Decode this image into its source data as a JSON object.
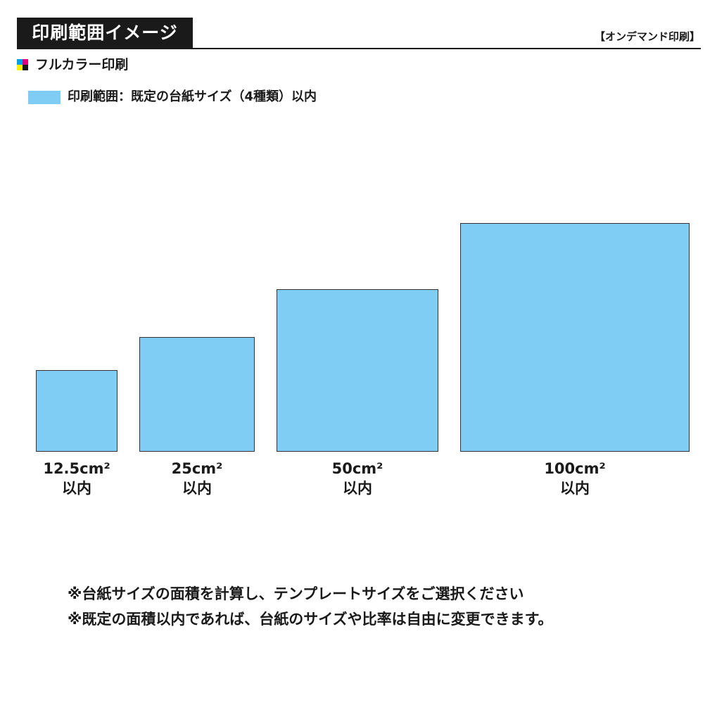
{
  "header": {
    "title": "印刷範囲イメージ",
    "tag": "【オンデマンド印刷】"
  },
  "print_type": {
    "icon": "cmyk-icon",
    "label": "フルカラー印刷"
  },
  "legend": {
    "label": "印刷範囲：既定の台紙サイズ（4種類）以内",
    "color": "#7fcdf4"
  },
  "sizes": [
    {
      "value": "12.5cm²",
      "suffix": "以内"
    },
    {
      "value": "25cm²",
      "suffix": "以内"
    },
    {
      "value": "50cm²",
      "suffix": "以内"
    },
    {
      "value": "100cm²",
      "suffix": "以内"
    }
  ],
  "notes": [
    "※台紙サイズの面積を計算し、テンプレートサイズをご選択ください",
    "※既定の面積以内であれば、台紙のサイズや比率は自由に変更できます。"
  ]
}
